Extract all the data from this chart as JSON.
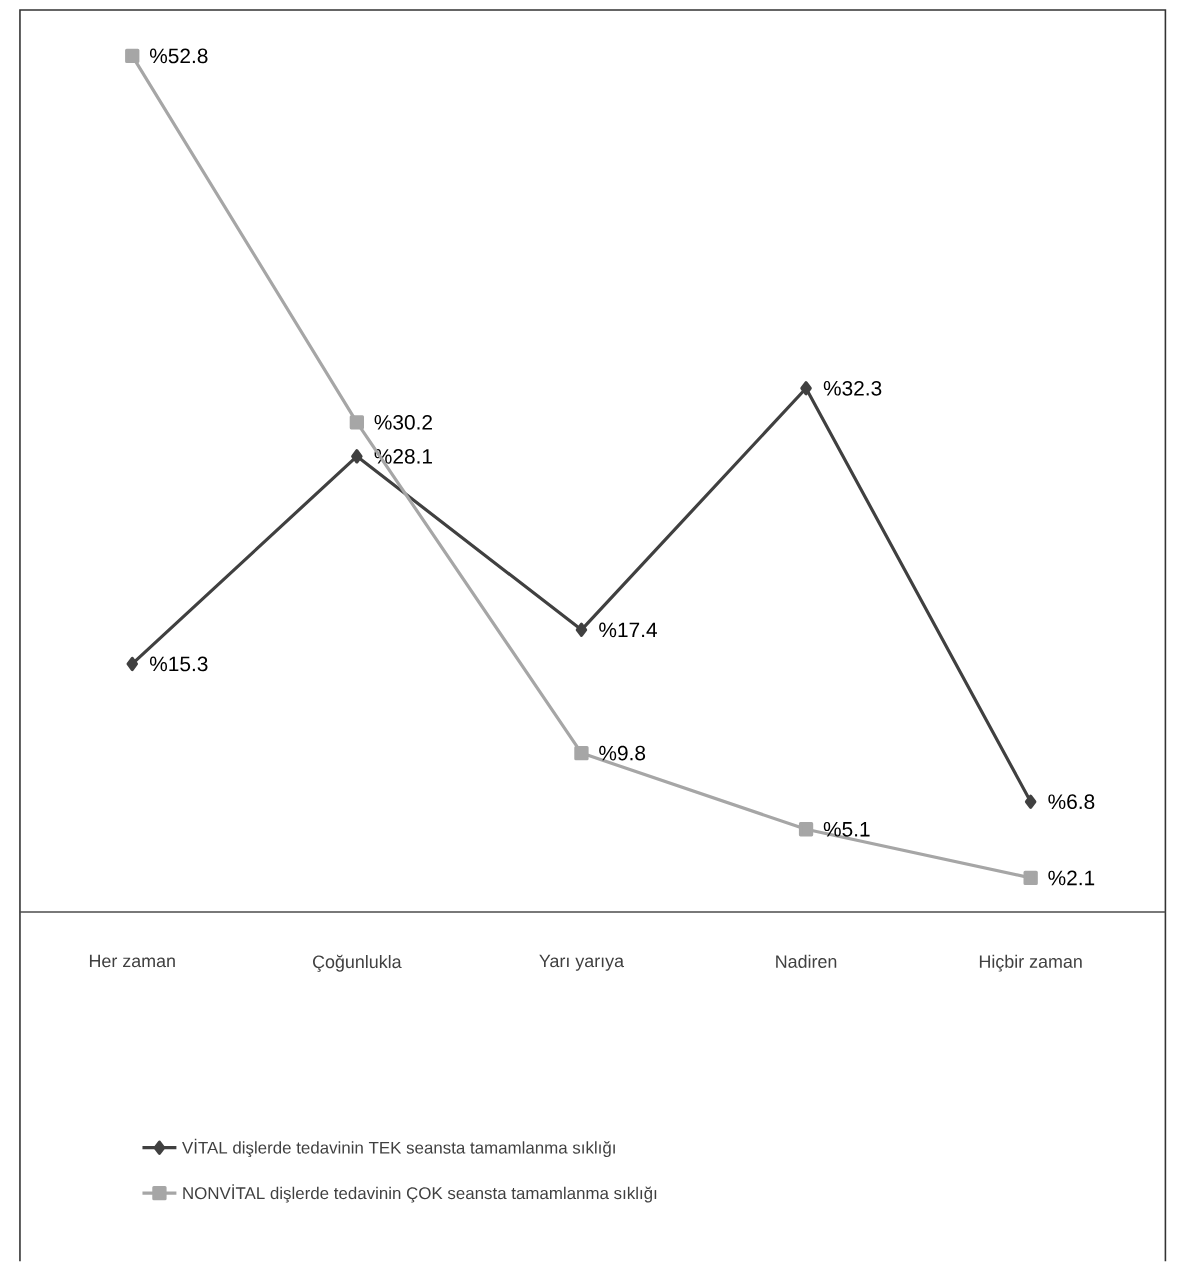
{
  "chart_data": {
    "type": "line",
    "categories": [
      "Her zaman",
      "Çoğunlukla",
      "Yarı yarıya",
      "Nadiren",
      "Hiçbir zaman"
    ],
    "tick_labels": "x",
    "legend": "bottom",
    "series": [
      {
        "name": "VİTAL dişlerde tedavinin TEK seansta tamamlanma sıklığı",
        "color": "#404040",
        "marker": "diamond",
        "values": [
          15.3,
          28.1,
          17.4,
          32.3,
          6.8
        ],
        "value_labels": [
          "%15.3",
          "%28.1",
          "%17.4",
          "%32.3",
          "%6.8"
        ]
      },
      {
        "name": "NONVİTAL dişlerde tedavinin ÇOK seansta tamamlanma sıklığı",
        "color": "#a6a6a6",
        "marker": "square",
        "values": [
          52.8,
          30.2,
          9.8,
          5.1,
          2.1
        ],
        "value_labels": [
          "%52.8",
          "%30.2",
          "%9.8",
          "%5.1",
          "%2.1"
        ]
      }
    ]
  }
}
